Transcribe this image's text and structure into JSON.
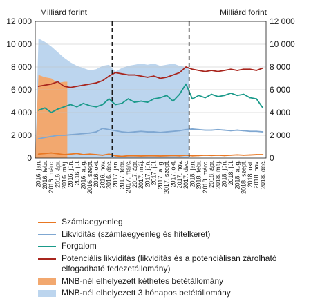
{
  "chart_data": {
    "type": "line",
    "unit_left": "Milliárd forint",
    "unit_right": "Milliárd forint",
    "ylim": [
      0,
      12000
    ],
    "yticks": [
      "0",
      "2 000",
      "4 000",
      "6 000",
      "8 000",
      "10 000",
      "12 000"
    ],
    "ytick_values": [
      0,
      2000,
      4000,
      6000,
      8000,
      10000,
      12000
    ],
    "x_categories": [
      "2016. jan.",
      "2016. febr.",
      "2016. márc.",
      "2016. ápr.",
      "2016. máj.",
      "2016. jún.",
      "2016. júl.",
      "2016. aug.",
      "2016. szept.",
      "2016. okt.",
      "2016. nov.",
      "2016. dec.",
      "2017. jan.",
      "2017. febr.",
      "2017. márc.",
      "2017. ápr.",
      "2017. máj.",
      "2017. jún.",
      "2017. júl.",
      "2017. aug.",
      "2017. szept.",
      "2017. okt.",
      "2017. nov.",
      "2017. dec.",
      "2018. jan.",
      "2018. febr.",
      "2018. márc.",
      "2018. ápr.",
      "2018. máj.",
      "2018. jún.",
      "2018. júl.",
      "2018. aug.",
      "2018. szept.",
      "2018. okt.",
      "2018. nov.",
      "2018. dec."
    ],
    "year_separators_after_month": [
      12,
      24
    ],
    "series": [
      {
        "name": "Számlaegyenleg",
        "color": "#e87722",
        "style": "line",
        "values": [
          350,
          400,
          450,
          380,
          300,
          350,
          400,
          300,
          350,
          300,
          250,
          350,
          200,
          150,
          200,
          200,
          180,
          200,
          200,
          180,
          200,
          220,
          200,
          250,
          200,
          220,
          250,
          230,
          250,
          220,
          250,
          280,
          250,
          270,
          300,
          300
        ]
      },
      {
        "name": "Likviditás (számlaegyenleg és hitelkeret)",
        "color": "#7fa7d1",
        "style": "line",
        "values": [
          1700,
          1800,
          1900,
          2000,
          2000,
          2050,
          2100,
          2150,
          2200,
          2300,
          2600,
          2500,
          2400,
          2300,
          2250,
          2300,
          2350,
          2300,
          2300,
          2250,
          2300,
          2350,
          2400,
          2500,
          2550,
          2500,
          2450,
          2450,
          2500,
          2450,
          2400,
          2450,
          2400,
          2350,
          2350,
          2300
        ]
      },
      {
        "name": "Forgalom",
        "color": "#1a9a8a",
        "style": "line",
        "values": [
          4200,
          4400,
          4000,
          4300,
          4500,
          4700,
          4500,
          4800,
          4600,
          4500,
          4700,
          5200,
          4700,
          4800,
          5200,
          4900,
          5000,
          4900,
          5200,
          5300,
          5500,
          5000,
          5600,
          6500,
          5200,
          5500,
          5300,
          5600,
          5400,
          5500,
          5700,
          5500,
          5600,
          5300,
          5200,
          4400
        ]
      },
      {
        "name": "Potenciális likviditás (likviditás és a potenciálisan zárolható elfogadható fedezetállomány)",
        "color": "#a8251d",
        "style": "line",
        "values": [
          6300,
          6400,
          6500,
          6700,
          6300,
          6200,
          6300,
          6400,
          6500,
          6600,
          6800,
          7200,
          7500,
          7400,
          7300,
          7300,
          7200,
          7100,
          7200,
          7000,
          7100,
          7300,
          7500,
          8000,
          7800,
          7700,
          7600,
          7700,
          7600,
          7700,
          7800,
          7700,
          7800,
          7800,
          7700,
          7900
        ]
      },
      {
        "name": "MNB-nél elhelyezett kéthetes betétállomány",
        "color": "#f2a86f",
        "style": "area",
        "values": [
          7300,
          7100,
          7000,
          6600,
          6700,
          0,
          0,
          0,
          0,
          0,
          0,
          0,
          0,
          0,
          0,
          0,
          0,
          0,
          0,
          0,
          0,
          0,
          0,
          0,
          0,
          0,
          0,
          0,
          0,
          0,
          0,
          0,
          0,
          0,
          0,
          0
        ]
      },
      {
        "name": "MNB-nél elhelyezett 3 hónapos betétállomány",
        "color": "#bcd5ee",
        "style": "area",
        "values": [
          10500,
          10200,
          9800,
          9300,
          8800,
          8400,
          8100,
          7900,
          7700,
          7800,
          8100,
          8200,
          7600,
          7900,
          8100,
          8200,
          8300,
          8200,
          8300,
          8100,
          8200,
          8300,
          8100,
          8000,
          0,
          0,
          0,
          0,
          0,
          0,
          0,
          0,
          0,
          0,
          0,
          0
        ]
      }
    ]
  }
}
